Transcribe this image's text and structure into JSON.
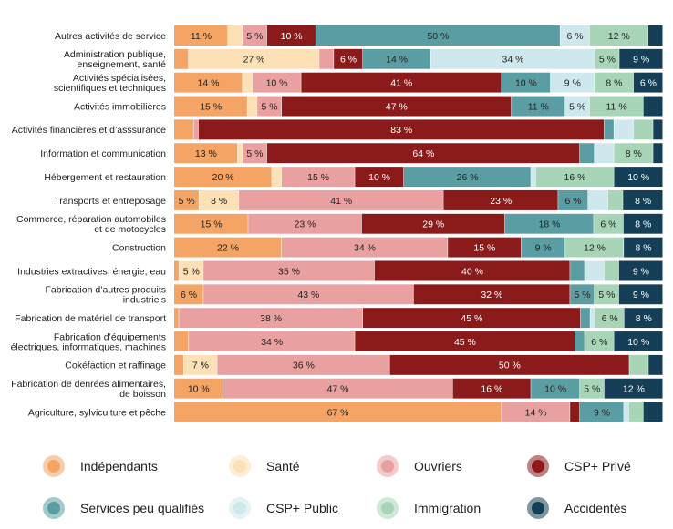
{
  "chart_data": {
    "type": "bar",
    "orientation": "horizontal",
    "stacked": true,
    "normalized": true,
    "grid": false,
    "legend_position": "bottom",
    "categories": [
      "Autres activités de service",
      "Administration publique,\nenseignement, santé",
      "Activités spécialisées,\nscientifiques et techniques",
      "Activités immobilières",
      "Activités financières et d’asssurance",
      "Information et communication",
      "Hébergement et restauration",
      "Transports et entreposage",
      "Commerce, réparation automobiles\net de motocycles",
      "Construction",
      "Industries extractives, énergie, eau",
      "Fabrication d’autres produits\nindustriels",
      "Fabrication de matériel de transport",
      "Fabrication d’équipements\nélectriques, informatiques, machines",
      "Cokéfaction et raffinage",
      "Fabrication de denrées alimentaires,\nde boisson",
      "Agriculture, sylviculture et pêche"
    ],
    "series": [
      {
        "name": "Indépendants",
        "color": "#f4a465",
        "label_color": "#222222",
        "values": [
          11,
          3,
          14,
          15,
          4,
          13,
          20,
          5,
          15,
          22,
          1,
          6,
          1,
          3,
          2,
          10,
          67
        ]
      },
      {
        "name": "Santé",
        "color": "#fde0b6",
        "label_color": "#222222",
        "values": [
          3,
          27,
          2,
          2,
          0,
          1,
          2,
          8,
          0,
          0,
          5,
          0,
          0,
          0,
          7,
          0,
          0
        ]
      },
      {
        "name": "Ouvriers",
        "color": "#e9a0a0",
        "label_color": "#222222",
        "values": [
          5,
          3,
          10,
          5,
          1,
          5,
          15,
          41,
          23,
          34,
          35,
          43,
          38,
          34,
          36,
          47,
          14
        ]
      },
      {
        "name": "CSP+ Privé",
        "color": "#8b1a1a",
        "label_color": "#ffffff",
        "values": [
          10,
          6,
          41,
          47,
          83,
          64,
          10,
          23,
          29,
          15,
          40,
          32,
          45,
          45,
          50,
          16,
          2
        ]
      },
      {
        "name": "Services peu qualifiés",
        "color": "#5a9ea3",
        "label_color": "#222222",
        "values": [
          50,
          14,
          10,
          11,
          2,
          3,
          26,
          6,
          18,
          9,
          3,
          5,
          2,
          2,
          0,
          10,
          9
        ]
      },
      {
        "name": "CSP+ Public",
        "color": "#cfe8ee",
        "label_color": "#222222",
        "values": [
          6,
          34,
          9,
          5,
          4,
          4,
          1,
          4,
          0,
          0,
          4,
          0,
          1,
          0,
          0,
          0,
          1
        ]
      },
      {
        "name": "Immigration",
        "color": "#a8d5b8",
        "label_color": "#222222",
        "values": [
          12,
          5,
          8,
          11,
          4,
          8,
          16,
          3,
          6,
          12,
          3,
          5,
          6,
          6,
          4,
          5,
          3
        ]
      },
      {
        "name": "Accidentés",
        "color": "#153e57",
        "label_color": "#ffffff",
        "values": [
          3,
          9,
          6,
          4,
          2,
          2,
          10,
          8,
          8,
          8,
          9,
          9,
          8,
          10,
          3,
          12,
          4
        ]
      }
    ],
    "shown_labels": [
      [
        1,
        0,
        1,
        1,
        1,
        1,
        1,
        0
      ],
      [
        0,
        1,
        0,
        1,
        1,
        1,
        1,
        1
      ],
      [
        1,
        0,
        1,
        1,
        1,
        1,
        1,
        1
      ],
      [
        1,
        0,
        1,
        1,
        1,
        1,
        1,
        0
      ],
      [
        0,
        0,
        0,
        1,
        0,
        0,
        0,
        0
      ],
      [
        1,
        0,
        1,
        1,
        0,
        0,
        1,
        0
      ],
      [
        1,
        0,
        1,
        1,
        1,
        0,
        1,
        1
      ],
      [
        1,
        1,
        1,
        1,
        1,
        0,
        0,
        1
      ],
      [
        1,
        0,
        1,
        1,
        1,
        0,
        1,
        1
      ],
      [
        1,
        0,
        1,
        1,
        1,
        0,
        1,
        1
      ],
      [
        0,
        1,
        1,
        1,
        0,
        0,
        0,
        1
      ],
      [
        1,
        0,
        1,
        1,
        1,
        0,
        1,
        1
      ],
      [
        0,
        0,
        1,
        1,
        0,
        0,
        1,
        1
      ],
      [
        0,
        0,
        1,
        1,
        0,
        0,
        1,
        1
      ],
      [
        0,
        1,
        1,
        1,
        0,
        0,
        0,
        0
      ],
      [
        1,
        0,
        1,
        1,
        1,
        0,
        1,
        1
      ],
      [
        1,
        0,
        1,
        0,
        1,
        0,
        0,
        0
      ]
    ],
    "value_suffix": " %"
  }
}
